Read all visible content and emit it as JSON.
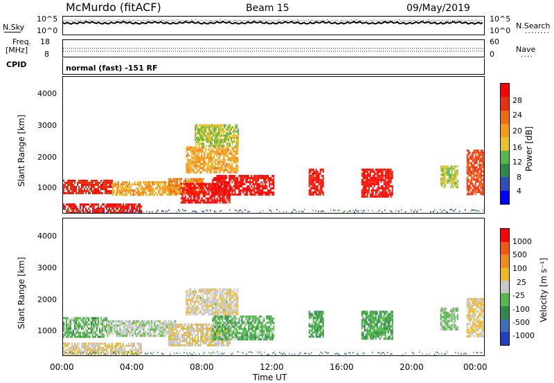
{
  "header": {
    "site": "McMurdo (fitACF)",
    "beam": "Beam 15",
    "date": "09/May/2019"
  },
  "top_panel": {
    "left_label": "N.Sky",
    "left_ticks": [
      "10^5",
      "10^0"
    ],
    "right_ticks": [
      "10^5",
      "10^0"
    ],
    "right_label": "N.Search",
    "right_label_line": "........"
  },
  "freq_panel": {
    "left_label_1": "Freq.",
    "left_label_2": "[MHz]",
    "left_ticks": [
      "18",
      "8"
    ],
    "right_ticks": [
      "60",
      "0"
    ],
    "right_label": "Nave",
    "right_label_line": "...."
  },
  "cpid": {
    "label": "CPID",
    "text": "normal (fast) -151 RF"
  },
  "x_axis": {
    "ticks": [
      "00:00",
      "04:00",
      "08:00",
      "12:00",
      "16:00",
      "20:00",
      "00:00"
    ],
    "label": "Time UT"
  },
  "power_panel": {
    "ylabel": "Slant Range [km]",
    "yticks": [
      "4000",
      "3000",
      "2000",
      "1000"
    ],
    "colorbar_label": "Power [dB]",
    "colorbar_ticks": [
      "28",
      "24",
      "20",
      "16",
      "12",
      "8",
      "4"
    ],
    "colors": [
      "#0000ff",
      "#2e4fb0",
      "#2f8a4a",
      "#55b84a",
      "#e8c22a",
      "#f49a1a",
      "#f06a10",
      "#e83010",
      "#ff0000"
    ]
  },
  "velocity_panel": {
    "ylabel": "Slant Range [km]",
    "yticks": [
      "4000",
      "3000",
      "2000",
      "1000"
    ],
    "colorbar_label": "Velocity [m s⁻¹]",
    "colorbar_ticks": [
      "1000",
      "500",
      "100",
      "25",
      "-25",
      "-100",
      "-500",
      "-1000"
    ],
    "colors": [
      "#2040c0",
      "#3f6fb5",
      "#2f8a4a",
      "#55b84a",
      "#c8c8c8",
      "#f0b820",
      "#f08a1a",
      "#f05a10",
      "#ff0000"
    ]
  },
  "chart_data": [
    {
      "type": "heatmap",
      "title": "Beam 15",
      "ylabel": "Slant Range [km]",
      "xlabel": "Time UT",
      "x_range_hours": [
        0,
        24
      ],
      "ylim_km": [
        200,
        4500
      ],
      "colorbar": "Power [dB]",
      "colorbar_range": [
        0,
        30
      ],
      "regions": [
        {
          "t": [
            0.0,
            2.8
          ],
          "r": [
            800,
            1250
          ],
          "level": 26
        },
        {
          "t": [
            0.0,
            4.5
          ],
          "r": [
            200,
            500
          ],
          "level": 28
        },
        {
          "t": [
            2.8,
            6.5
          ],
          "r": [
            800,
            1200
          ],
          "level": 18
        },
        {
          "t": [
            6.0,
            8.0
          ],
          "r": [
            800,
            1300
          ],
          "level": 20
        },
        {
          "t": [
            6.7,
            9.5
          ],
          "r": [
            550,
            1150
          ],
          "level": 28
        },
        {
          "t": [
            8.5,
            12.0
          ],
          "r": [
            750,
            1400
          ],
          "level": 28
        },
        {
          "t": [
            7.0,
            10.0
          ],
          "r": [
            1500,
            2300
          ],
          "level": 18
        },
        {
          "t": [
            7.5,
            10.0
          ],
          "r": [
            2300,
            3000
          ],
          "level": 14
        },
        {
          "t": [
            14.0,
            14.8
          ],
          "r": [
            800,
            1600
          ],
          "level": 28
        },
        {
          "t": [
            17.0,
            18.8
          ],
          "r": [
            700,
            1600
          ],
          "level": 28
        },
        {
          "t": [
            21.5,
            22.5
          ],
          "r": [
            1000,
            1700
          ],
          "level": 14
        },
        {
          "t": [
            23.0,
            24.0
          ],
          "r": [
            800,
            2200
          ],
          "level": 24
        }
      ]
    },
    {
      "type": "heatmap",
      "ylabel": "Slant Range [km]",
      "xlabel": "Time UT",
      "x_range_hours": [
        0,
        24
      ],
      "ylim_km": [
        200,
        4500
      ],
      "colorbar": "Velocity [m s⁻¹]",
      "colorbar_range": [
        -1000,
        1000
      ],
      "regions": [
        {
          "t": [
            0.0,
            2.5
          ],
          "r": [
            800,
            1400
          ],
          "level": -200
        },
        {
          "t": [
            0.0,
            4.5
          ],
          "r": [
            200,
            600
          ],
          "level": 80
        },
        {
          "t": [
            2.5,
            6.5
          ],
          "r": [
            800,
            1300
          ],
          "level": -60
        },
        {
          "t": [
            6.0,
            9.5
          ],
          "r": [
            500,
            1200
          ],
          "level": 70
        },
        {
          "t": [
            8.5,
            12.0
          ],
          "r": [
            700,
            1450
          ],
          "level": -250
        },
        {
          "t": [
            7.0,
            10.0
          ],
          "r": [
            1500,
            2300
          ],
          "level": 60
        },
        {
          "t": [
            14.0,
            14.8
          ],
          "r": [
            800,
            1600
          ],
          "level": -300
        },
        {
          "t": [
            17.0,
            18.8
          ],
          "r": [
            700,
            1600
          ],
          "level": -300
        },
        {
          "t": [
            21.5,
            22.5
          ],
          "r": [
            1000,
            1700
          ],
          "level": -150
        },
        {
          "t": [
            23.0,
            24.0
          ],
          "r": [
            800,
            2000
          ],
          "level": 120
        }
      ]
    }
  ]
}
